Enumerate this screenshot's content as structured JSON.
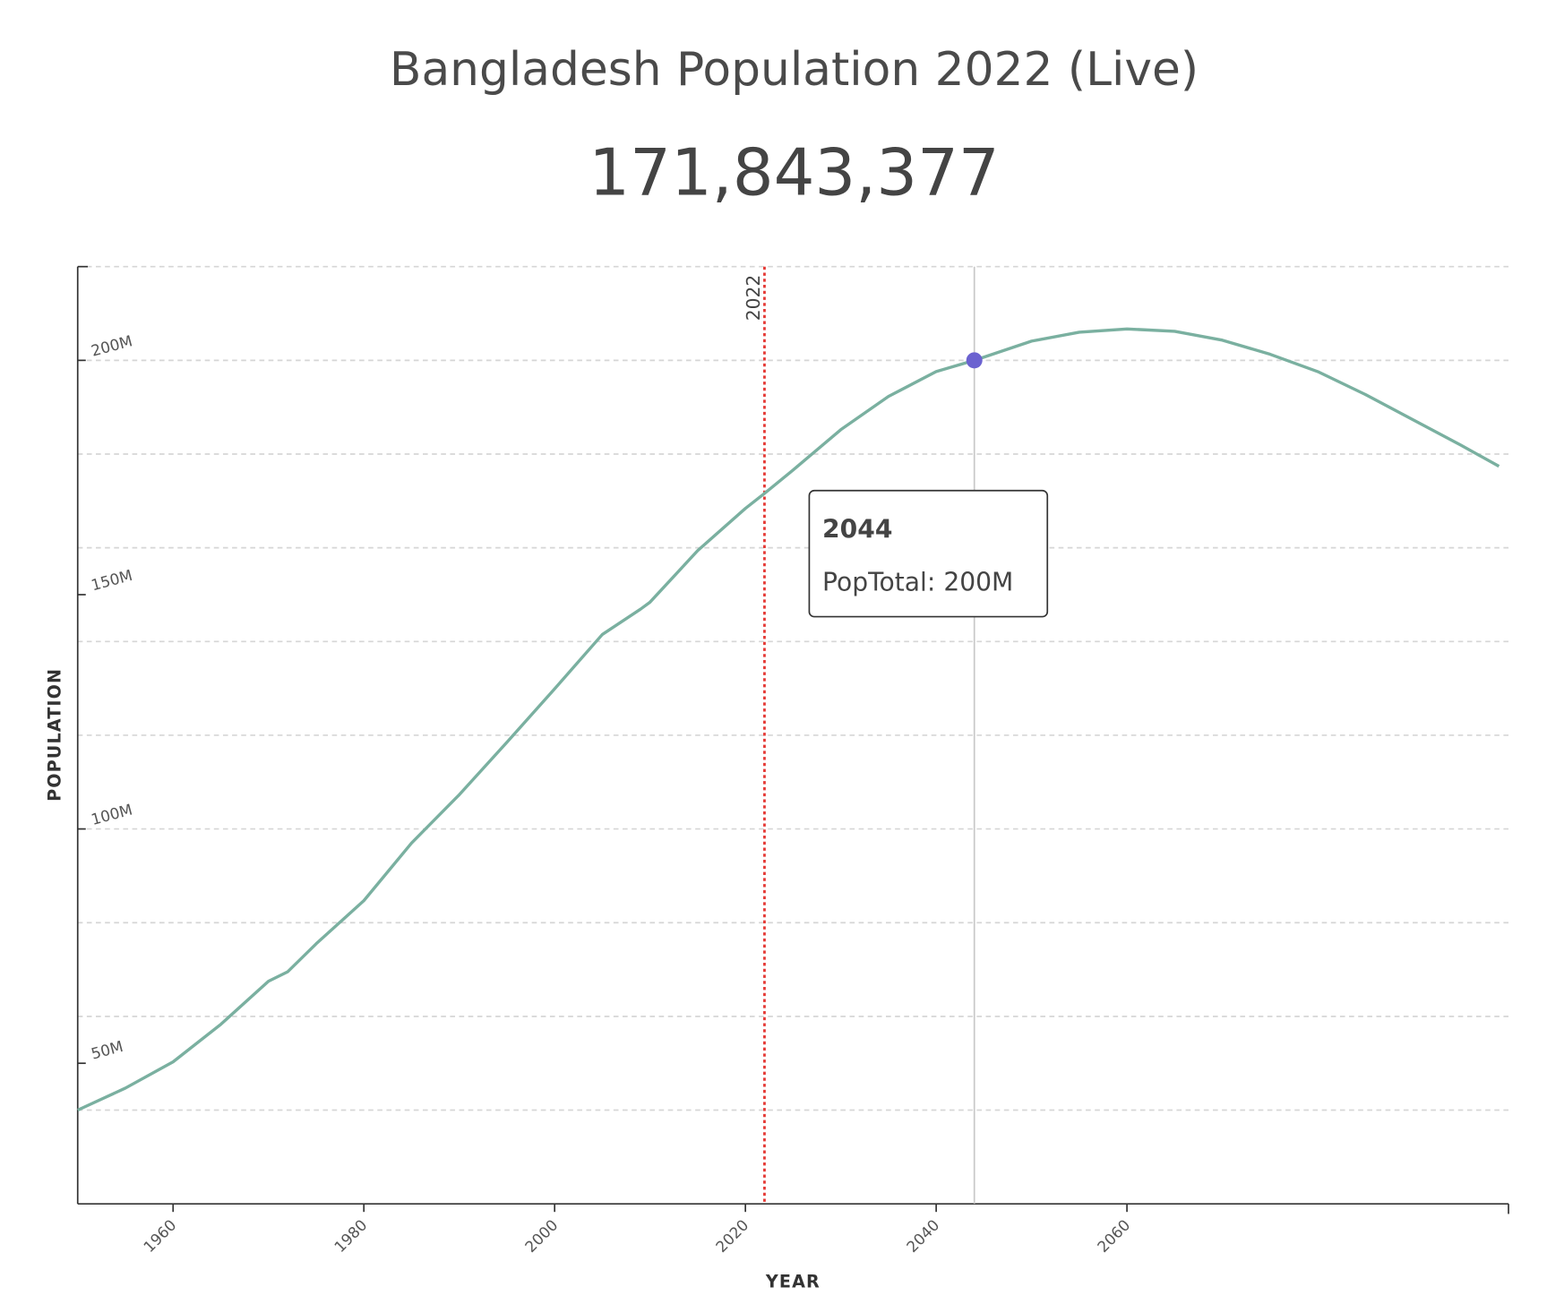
{
  "chart_data": {
    "type": "line",
    "title": "Bangladesh Population 2022 (Live)",
    "headline": "171,843,377",
    "x_label": "YEAR",
    "y_label": "POPULATION",
    "x": [
      1950,
      1955,
      1960,
      1965,
      1970,
      1972,
      1975,
      1980,
      1985,
      1990,
      1995,
      2000,
      2005,
      2009,
      2010,
      2015,
      2020,
      2022,
      2025,
      2030,
      2035,
      2040,
      2044,
      2050,
      2055,
      2060,
      2065,
      2070,
      2075,
      2080,
      2085,
      2090,
      2095,
      2099
    ],
    "series": [
      {
        "name": "PopTotal",
        "color": "#7ab0a0",
        "values": [
          40,
          44.7,
          50.3,
          58.3,
          67.5,
          69.5,
          75.5,
          84.7,
          97,
          107.3,
          118.5,
          129.9,
          141.5,
          146.9,
          148.4,
          159.4,
          168.4,
          171.6,
          176.6,
          185.2,
          192.3,
          197.6,
          200,
          204.1,
          206,
          206.7,
          206.2,
          204.3,
          201.3,
          197.6,
          192.7,
          187.3,
          181.9,
          177.4
        ]
      }
    ],
    "xlim": [
      1950,
      2100
    ],
    "xticks": [
      1960,
      1980,
      2000,
      2020,
      2040,
      2060
    ],
    "ylim": [
      20,
      220
    ],
    "yticks": [
      {
        "value": 50,
        "label": "50M"
      },
      {
        "value": 100,
        "label": "100M"
      },
      {
        "value": 150,
        "label": "150M"
      },
      {
        "value": 200,
        "label": "200M"
      }
    ],
    "ygrid": [
      40,
      60,
      80,
      100,
      120,
      140,
      160,
      180,
      200,
      220
    ],
    "reference_line": {
      "value": 2022,
      "label": "2022",
      "color": "#e53935"
    },
    "tooltip": {
      "x": 2044,
      "text": "PopTotal: 200M"
    },
    "marker_color": "#6b62d0"
  }
}
